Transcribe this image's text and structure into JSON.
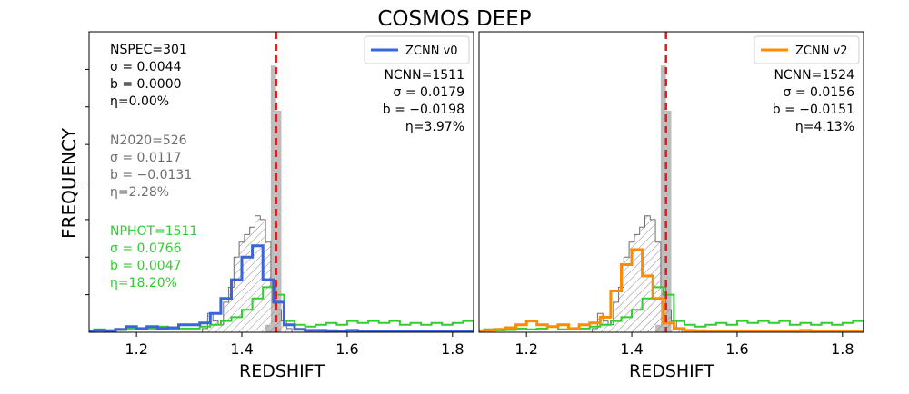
{
  "figure": {
    "title": "COSMOS DEEP",
    "ylabel": "FREQUENCY",
    "xlabel": "REDSHIFT"
  },
  "colors": {
    "red_line": "#e41a1c",
    "spec_bar": "#bdbdbd",
    "n2020": "#6e6e6e",
    "nphot": "#33cc33",
    "zcnn_v0": "#3a64d8",
    "zcnn_v2": "#ff8c00"
  },
  "chart_data": [
    {
      "type": "histogram",
      "panel": "left",
      "title": "",
      "xlabel": "REDSHIFT",
      "ylabel": "FREQUENCY",
      "xlim": [
        1.11,
        1.84
      ],
      "ylim": [
        0,
        80
      ],
      "xticks": [
        "1.2",
        "1.4",
        "1.6",
        "1.8"
      ],
      "xtick_values": [
        1.2,
        1.4,
        1.6,
        1.8
      ],
      "ref_line_x": 1.465,
      "legend": {
        "label": "ZCNN v0",
        "placement": "top-right"
      },
      "annotations_left": [
        {
          "group": "spec",
          "lines": [
            "NSPEC=301",
            "σ = 0.0044",
            "b = 0.0000",
            "η=0.00%"
          ]
        },
        {
          "group": "n2020",
          "lines": [
            "N2020=526",
            "σ = 0.0117",
            "b = −0.0131",
            "η=2.28%"
          ]
        },
        {
          "group": "nphot",
          "lines": [
            "NPHOT=1511",
            "σ = 0.0766",
            "b = 0.0047",
            "η=18.20%"
          ]
        }
      ],
      "annotations_right": [
        "NCNN=1511",
        "σ = 0.0179",
        "b = −0.0198",
        "η=3.97%"
      ],
      "series": [
        {
          "name": "NSPEC",
          "style": "bar",
          "x": [
            1.45,
            1.46,
            1.47
          ],
          "values": [
            2,
            71,
            59
          ],
          "bin_width": 0.01
        },
        {
          "name": "N2020",
          "style": "hatched_step",
          "x": [
            1.33,
            1.34,
            1.35,
            1.36,
            1.37,
            1.38,
            1.39,
            1.4,
            1.41,
            1.42,
            1.43,
            1.44,
            1.45,
            1.46,
            1.47,
            1.48,
            1.49,
            1.5,
            1.51
          ],
          "values": [
            1,
            5,
            3,
            2,
            8,
            12,
            20,
            24,
            26,
            28,
            31,
            30,
            24,
            12,
            6,
            3,
            1,
            0,
            0
          ],
          "bin_width": 0.01
        },
        {
          "name": "NPHOT",
          "style": "step",
          "x": [
            1.11,
            1.13,
            1.15,
            1.17,
            1.19,
            1.21,
            1.23,
            1.25,
            1.27,
            1.29,
            1.31,
            1.33,
            1.35,
            1.37,
            1.39,
            1.41,
            1.43,
            1.45,
            1.47,
            1.49,
            1.51,
            1.53,
            1.55,
            1.57,
            1.59,
            1.61,
            1.63,
            1.65,
            1.67,
            1.69,
            1.71,
            1.73,
            1.75,
            1.77,
            1.79,
            1.81,
            1.83
          ],
          "values": [
            0.5,
            0.8,
            0.5,
            0.6,
            1,
            0.8,
            1,
            1.5,
            0.8,
            1,
            1,
            1.5,
            2,
            3,
            4,
            6,
            9,
            12,
            10,
            3,
            2,
            1.5,
            2,
            2.5,
            2,
            3,
            2.5,
            3,
            2.5,
            3,
            2,
            2.5,
            2,
            2.5,
            2,
            2.5,
            3
          ],
          "bin_width": 0.02
        },
        {
          "name": "ZCNN v0",
          "style": "step",
          "x": [
            1.11,
            1.13,
            1.15,
            1.17,
            1.19,
            1.21,
            1.23,
            1.25,
            1.27,
            1.29,
            1.31,
            1.33,
            1.35,
            1.37,
            1.39,
            1.41,
            1.43,
            1.45,
            1.47,
            1.49,
            1.51,
            1.53,
            1.55,
            1.57,
            1.59,
            1.61,
            1.63,
            1.65,
            1.67,
            1.69,
            1.71,
            1.73,
            1.75,
            1.77,
            1.79,
            1.81,
            1.83
          ],
          "values": [
            0.3,
            0.5,
            0.4,
            0.8,
            1.5,
            1,
            1.5,
            1,
            1.2,
            2,
            2,
            2.5,
            5,
            9,
            14,
            20,
            23,
            14,
            8,
            2,
            0.8,
            0.5,
            0.5,
            0.4,
            0.3,
            0.5,
            0.3,
            0.3,
            0.3,
            0.3,
            0.3,
            0.3,
            0.3,
            0.3,
            0.3,
            0.3,
            0.3
          ],
          "bin_width": 0.02
        }
      ]
    },
    {
      "type": "histogram",
      "panel": "right",
      "title": "",
      "xlabel": "REDSHIFT",
      "ylabel": "",
      "xlim": [
        1.11,
        1.84
      ],
      "ylim": [
        0,
        80
      ],
      "xticks": [
        "1.2",
        "1.4",
        "1.6",
        "1.8"
      ],
      "xtick_values": [
        1.2,
        1.4,
        1.6,
        1.8
      ],
      "ref_line_x": 1.465,
      "legend": {
        "label": "ZCNN v2",
        "placement": "top-right"
      },
      "annotations_right": [
        "NCNN=1524",
        "σ = 0.0156",
        "b = −0.0151",
        "η=4.13%"
      ],
      "series": [
        {
          "name": "NSPEC",
          "style": "bar",
          "x": [
            1.45,
            1.46,
            1.47
          ],
          "values": [
            2,
            71,
            59
          ],
          "bin_width": 0.01
        },
        {
          "name": "N2020",
          "style": "hatched_step",
          "x": [
            1.33,
            1.34,
            1.35,
            1.36,
            1.37,
            1.38,
            1.39,
            1.4,
            1.41,
            1.42,
            1.43,
            1.44,
            1.45,
            1.46,
            1.47,
            1.48,
            1.49,
            1.5,
            1.51
          ],
          "values": [
            1,
            5,
            3,
            2,
            8,
            12,
            20,
            24,
            26,
            28,
            31,
            30,
            24,
            12,
            6,
            3,
            1,
            0,
            0
          ],
          "bin_width": 0.01
        },
        {
          "name": "NPHOT",
          "style": "step",
          "x": [
            1.11,
            1.13,
            1.15,
            1.17,
            1.19,
            1.21,
            1.23,
            1.25,
            1.27,
            1.29,
            1.31,
            1.33,
            1.35,
            1.37,
            1.39,
            1.41,
            1.43,
            1.45,
            1.47,
            1.49,
            1.51,
            1.53,
            1.55,
            1.57,
            1.59,
            1.61,
            1.63,
            1.65,
            1.67,
            1.69,
            1.71,
            1.73,
            1.75,
            1.77,
            1.79,
            1.81,
            1.83
          ],
          "values": [
            0.5,
            0.8,
            0.5,
            0.6,
            1,
            0.8,
            1,
            1.5,
            0.8,
            1,
            1,
            1.5,
            2,
            3,
            4,
            6,
            9,
            12,
            10,
            3,
            2,
            1.5,
            2,
            2.5,
            2,
            3,
            2.5,
            3,
            2.5,
            3,
            2,
            2.5,
            2,
            2.5,
            2,
            2.5,
            3
          ],
          "bin_width": 0.02
        },
        {
          "name": "ZCNN v2",
          "style": "step",
          "x": [
            1.11,
            1.13,
            1.15,
            1.17,
            1.19,
            1.21,
            1.23,
            1.25,
            1.27,
            1.29,
            1.31,
            1.33,
            1.35,
            1.37,
            1.39,
            1.41,
            1.43,
            1.45,
            1.47,
            1.49,
            1.51,
            1.53,
            1.55,
            1.57,
            1.59,
            1.61,
            1.63,
            1.65,
            1.67,
            1.69,
            1.71,
            1.73,
            1.75,
            1.77,
            1.79,
            1.81,
            1.83
          ],
          "values": [
            0.3,
            0.5,
            0.8,
            1.2,
            2,
            3,
            2,
            1.5,
            2,
            1,
            2,
            2.5,
            4,
            11,
            18,
            22,
            15,
            9,
            2.5,
            1,
            0.5,
            0.4,
            0.3,
            0.3,
            0.3,
            0.3,
            0.3,
            0.3,
            0.3,
            0.3,
            0.3,
            0.5,
            0.3,
            0.3,
            0.3,
            0.3,
            0.3
          ],
          "bin_width": 0.02
        }
      ]
    }
  ]
}
